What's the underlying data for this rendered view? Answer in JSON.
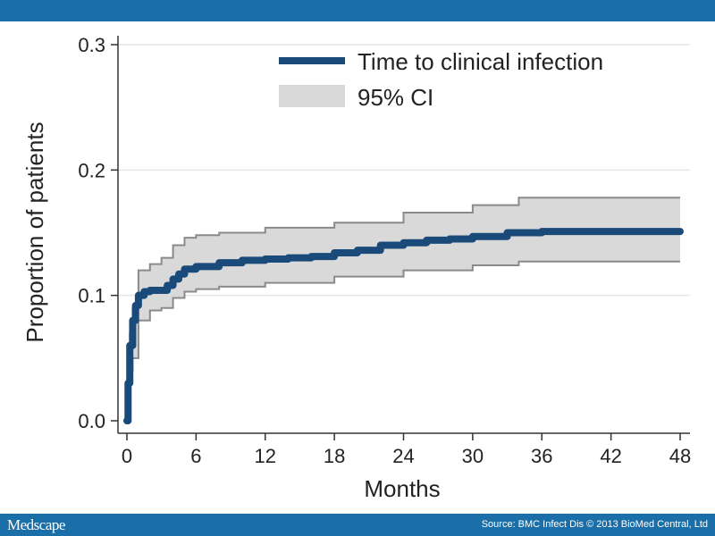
{
  "header": {},
  "footer": {
    "logo": "Medscape",
    "source": "Source: BMC Infect Dis © 2013 BioMed Central, Ltd"
  },
  "chart_data": {
    "type": "line",
    "title": "",
    "xlabel": "Months",
    "ylabel": "Proportion of patients",
    "xlim": [
      0,
      48
    ],
    "ylim": [
      0,
      0.3
    ],
    "xticks": [
      "0",
      "6",
      "12",
      "18",
      "24",
      "30",
      "36",
      "42",
      "48"
    ],
    "yticks": [
      "0.0",
      "0.1",
      "0.2",
      "0.3"
    ],
    "grid": "horizontal",
    "legend_position": "top-right",
    "series": [
      {
        "name": "Time to clinical infection",
        "color": "#1a4a7a",
        "step": true,
        "x": [
          0,
          0.1,
          0.25,
          0.5,
          0.75,
          1,
          1.5,
          2,
          3,
          3.5,
          4,
          4.5,
          5,
          6,
          8,
          10,
          12,
          14,
          16,
          18,
          20,
          22,
          24,
          26,
          28,
          30,
          33,
          36,
          40,
          48
        ],
        "y": [
          0,
          0.03,
          0.06,
          0.08,
          0.092,
          0.1,
          0.103,
          0.104,
          0.104,
          0.108,
          0.113,
          0.117,
          0.121,
          0.123,
          0.126,
          0.128,
          0.129,
          0.13,
          0.131,
          0.134,
          0.136,
          0.14,
          0.142,
          0.144,
          0.145,
          0.147,
          0.15,
          0.151,
          0.151,
          0.151
        ]
      },
      {
        "name": "95% CI",
        "color": "#d9d9d9",
        "edge_color": "#8a8a8a",
        "x": [
          0,
          0.25,
          0.5,
          1,
          2,
          3,
          4,
          5,
          6,
          8,
          12,
          18,
          24,
          30,
          34,
          36,
          48
        ],
        "upper": [
          0,
          0.07,
          0.09,
          0.12,
          0.125,
          0.13,
          0.14,
          0.146,
          0.148,
          0.15,
          0.154,
          0.158,
          0.166,
          0.172,
          0.178,
          0.178,
          0.178
        ],
        "lower": [
          0,
          0.04,
          0.05,
          0.08,
          0.088,
          0.09,
          0.098,
          0.103,
          0.105,
          0.107,
          0.11,
          0.115,
          0.12,
          0.124,
          0.127,
          0.127,
          0.127
        ]
      }
    ]
  }
}
